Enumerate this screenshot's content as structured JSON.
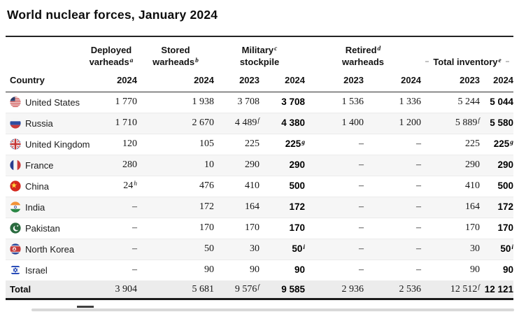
{
  "page": {
    "title": "World nuclear forces, January 2024"
  },
  "colors": {
    "stripe_row_bg": "#f6f6f6",
    "total_row_bg": "#ececec",
    "dark_rule": "#242424",
    "scroll_thumb": "#3f3f3f",
    "scroll_track": "#d8d8d8"
  },
  "table": {
    "country_col_label": "Country",
    "group_headers": [
      {
        "l1": "Deployed",
        "l2": "varheads",
        "s": "a"
      },
      {
        "l1": "Stored",
        "l2": "warheads",
        "s": "b"
      },
      {
        "l1": "Military",
        "s": "c",
        "l2": "stockpile"
      },
      {
        "l1": "Retired",
        "s": "d",
        "l2": "warheads"
      },
      {
        "l1": "Total inventory",
        "s": "e"
      }
    ],
    "years": [
      "2024",
      "2024",
      "2023",
      "2024",
      "2023",
      "2024",
      "2023",
      "2024"
    ],
    "rows": [
      {
        "flag": "us",
        "name": "United States",
        "cells": [
          {
            "v": "1 770"
          },
          {
            "v": "1 938"
          },
          {
            "v": "3 708"
          },
          {
            "v": "3 708"
          },
          {
            "v": "1 536"
          },
          {
            "v": "1 336"
          },
          {
            "v": "5 244"
          },
          {
            "v": "5 044"
          }
        ]
      },
      {
        "flag": "ru",
        "name": "Russia",
        "cells": [
          {
            "v": "1 710"
          },
          {
            "v": "2 670"
          },
          {
            "v": "4 489",
            "s": "f"
          },
          {
            "v": "4 380"
          },
          {
            "v": "1 400"
          },
          {
            "v": "1 200"
          },
          {
            "v": "5 889",
            "s": "f"
          },
          {
            "v": "5 580"
          }
        ]
      },
      {
        "flag": "gb",
        "name": "United Kingdom",
        "cells": [
          {
            "v": "120"
          },
          {
            "v": "105"
          },
          {
            "v": "225"
          },
          {
            "v": "225",
            "s": "g"
          },
          {
            "v": "–"
          },
          {
            "v": "–"
          },
          {
            "v": "225"
          },
          {
            "v": "225",
            "s": "g"
          }
        ]
      },
      {
        "flag": "fr",
        "name": "France",
        "cells": [
          {
            "v": "280"
          },
          {
            "v": "10"
          },
          {
            "v": "290"
          },
          {
            "v": "290"
          },
          {
            "v": "–"
          },
          {
            "v": "–"
          },
          {
            "v": "290"
          },
          {
            "v": "290"
          }
        ]
      },
      {
        "flag": "cn",
        "name": "China",
        "cells": [
          {
            "v": "24",
            "s": "h"
          },
          {
            "v": "476"
          },
          {
            "v": "410"
          },
          {
            "v": "500"
          },
          {
            "v": "–"
          },
          {
            "v": "–"
          },
          {
            "v": "410"
          },
          {
            "v": "500"
          }
        ]
      },
      {
        "flag": "in",
        "name": "India",
        "cells": [
          {
            "v": "–"
          },
          {
            "v": "172"
          },
          {
            "v": "164"
          },
          {
            "v": "172"
          },
          {
            "v": "–"
          },
          {
            "v": "–"
          },
          {
            "v": "164"
          },
          {
            "v": "172"
          }
        ]
      },
      {
        "flag": "pk",
        "name": "Pakistan",
        "cells": [
          {
            "v": "–"
          },
          {
            "v": "170"
          },
          {
            "v": "170"
          },
          {
            "v": "170"
          },
          {
            "v": "–"
          },
          {
            "v": "–"
          },
          {
            "v": "170"
          },
          {
            "v": "170"
          }
        ]
      },
      {
        "flag": "kp",
        "name": "North Korea",
        "cells": [
          {
            "v": "–"
          },
          {
            "v": "50"
          },
          {
            "v": "30"
          },
          {
            "v": "50",
            "s": "i"
          },
          {
            "v": "–"
          },
          {
            "v": "–"
          },
          {
            "v": "30"
          },
          {
            "v": "50",
            "s": "i"
          }
        ]
      },
      {
        "flag": "il",
        "name": "Israel",
        "cells": [
          {
            "v": "–"
          },
          {
            "v": "90"
          },
          {
            "v": "90"
          },
          {
            "v": "90"
          },
          {
            "v": "–"
          },
          {
            "v": "–"
          },
          {
            "v": "90"
          },
          {
            "v": "90"
          }
        ]
      }
    ],
    "total": {
      "label": "Total",
      "cells": [
        {
          "v": "3 904"
        },
        {
          "v": "5 681"
        },
        {
          "v": "9 576",
          "s": "f"
        },
        {
          "v": "9 585"
        },
        {
          "v": "2 936"
        },
        {
          "v": "2 536"
        },
        {
          "v": "12 512",
          "s": "f"
        },
        {
          "v": "12 121"
        }
      ]
    }
  },
  "chart_data": {
    "type": "table",
    "title": "World nuclear forces, January 2024",
    "columns": [
      "Country",
      "Deployed varheads(a) 2024",
      "Stored warheads(b) 2024",
      "Military stockpile(c) 2023",
      "Military stockpile(c) 2024",
      "Retired warheads(d) 2023",
      "Retired warheads(d) 2024",
      "Total inventory(e) 2023",
      "Total inventory(e) 2024"
    ],
    "rows": [
      [
        "United States",
        "1 770",
        "1 938",
        "3 708",
        "3 708",
        "1 536",
        "1 336",
        "5 244",
        "5 044"
      ],
      [
        "Russia",
        "1 710",
        "2 670",
        "4 489^f",
        "4 380",
        "1 400",
        "1 200",
        "5 889^f",
        "5 580"
      ],
      [
        "United Kingdom",
        "120",
        "105",
        "225",
        "225^g",
        "–",
        "–",
        "225",
        "225^g"
      ],
      [
        "France",
        "280",
        "10",
        "290",
        "290",
        "–",
        "–",
        "290",
        "290"
      ],
      [
        "China",
        "24^h",
        "476",
        "410",
        "500",
        "–",
        "–",
        "410",
        "500"
      ],
      [
        "India",
        "–",
        "172",
        "164",
        "172",
        "–",
        "–",
        "164",
        "172"
      ],
      [
        "Pakistan",
        "–",
        "170",
        "170",
        "170",
        "–",
        "–",
        "170",
        "170"
      ],
      [
        "North Korea",
        "–",
        "50",
        "30",
        "50^i",
        "–",
        "–",
        "30",
        "50^i"
      ],
      [
        "Israel",
        "–",
        "90",
        "90",
        "90",
        "–",
        "–",
        "90",
        "90"
      ],
      [
        "Total",
        "3 904",
        "5 681",
        "9 576^f",
        "9 585",
        "2 936",
        "2 536",
        "12 512^f",
        "12 121"
      ]
    ]
  }
}
